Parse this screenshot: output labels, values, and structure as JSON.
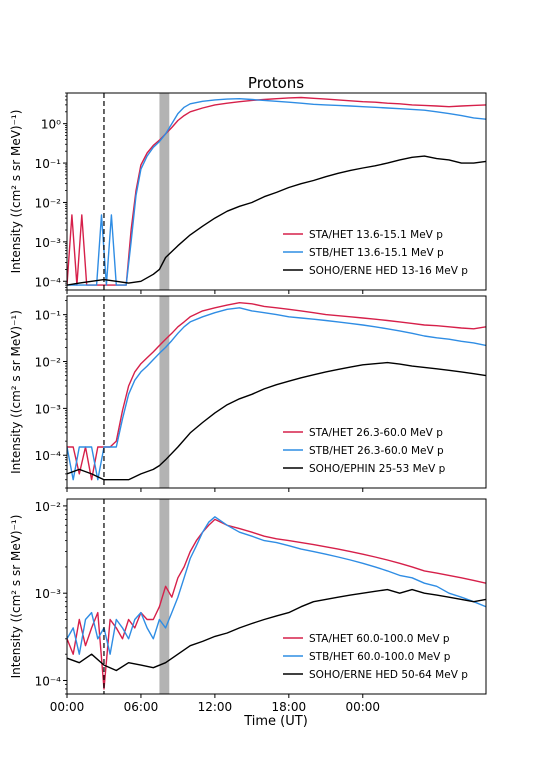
{
  "figure": {
    "title": "Protons",
    "xlabel": "Time (UT)",
    "x_ticks": [
      "00:00",
      "06:00",
      "12:00",
      "18:00",
      "00:00"
    ],
    "ylabel": "Intensity ((cm² s sr MeV)⁻¹)",
    "event_time_hours": 3.0,
    "shaded_interval_hours": [
      7.5,
      8.3
    ],
    "colors": {
      "sta": "#d6204a",
      "stb": "#2f8de4",
      "soho": "#000000",
      "shade": "#b3b3b3"
    }
  },
  "chart_data": [
    {
      "type": "line",
      "title": "Protons",
      "xlabel": "",
      "ylabel": "Intensity ((cm² s sr MeV)⁻¹)",
      "x_unit": "hours since 00:00 UT",
      "xlim": [
        0,
        34
      ],
      "ylog": true,
      "ylim": [
        6e-05,
        6
      ],
      "y_ticks": [
        {
          "label": "10⁻⁴",
          "value": 0.0001
        },
        {
          "label": "10⁻³",
          "value": 0.001
        },
        {
          "label": "10⁻²",
          "value": 0.01
        },
        {
          "label": "10⁻¹",
          "value": 0.1
        },
        {
          "label": "10⁰",
          "value": 1
        }
      ],
      "legend": "lower-right",
      "series": [
        {
          "name": "STA/HET 13.6-15.1 MeV p",
          "color": "#d6204a",
          "x": [
            0,
            0.4,
            0.8,
            1.2,
            1.6,
            2.0,
            2.4,
            2.8,
            3.2,
            3.6,
            4.0,
            4.4,
            4.8,
            5.2,
            5.6,
            6.0,
            6.5,
            7.0,
            7.5,
            8.0,
            8.5,
            9.0,
            9.5,
            10,
            11,
            12,
            13,
            14,
            15,
            16,
            17,
            18,
            19,
            20,
            21,
            22,
            23,
            24,
            25,
            26,
            27,
            28,
            29,
            30,
            31,
            32,
            33,
            34
          ],
          "y": [
            8e-05,
            0.0048,
            8e-05,
            0.0048,
            8e-05,
            8e-05,
            8e-05,
            8e-05,
            8e-05,
            8e-05,
            8e-05,
            8e-05,
            8e-05,
            0.002,
            0.02,
            0.09,
            0.18,
            0.28,
            0.38,
            0.55,
            0.8,
            1.2,
            1.6,
            2.0,
            2.5,
            3.0,
            3.3,
            3.6,
            3.9,
            4.1,
            4.3,
            4.5,
            4.6,
            4.4,
            4.2,
            4.0,
            3.8,
            3.6,
            3.5,
            3.3,
            3.2,
            3.0,
            2.9,
            2.8,
            2.7,
            2.8,
            2.9,
            3.0
          ]
        },
        {
          "name": "STB/HET 13.6-15.1 MeV p",
          "color": "#2f8de4",
          "x": [
            0,
            0.4,
            0.8,
            1.2,
            1.6,
            2.0,
            2.4,
            2.8,
            3.2,
            3.6,
            4.0,
            4.4,
            4.8,
            5.2,
            5.6,
            6.0,
            6.5,
            7.0,
            7.5,
            8.0,
            8.5,
            9.0,
            9.5,
            10,
            11,
            12,
            13,
            14,
            15,
            16,
            17,
            18,
            19,
            20,
            21,
            22,
            23,
            24,
            25,
            26,
            27,
            28,
            29,
            30,
            31,
            32,
            33,
            34
          ],
          "y": [
            8e-05,
            8e-05,
            8e-05,
            8e-05,
            8e-05,
            8e-05,
            8e-05,
            0.0048,
            8e-05,
            0.0048,
            8e-05,
            8e-05,
            8e-05,
            0.001,
            0.015,
            0.07,
            0.15,
            0.25,
            0.35,
            0.55,
            1.0,
            1.8,
            2.6,
            3.2,
            3.7,
            4.0,
            4.2,
            4.3,
            4.1,
            3.9,
            3.7,
            3.5,
            3.3,
            3.1,
            3.0,
            2.9,
            2.8,
            2.7,
            2.6,
            2.5,
            2.4,
            2.3,
            2.2,
            2.0,
            1.8,
            1.6,
            1.4,
            1.3
          ]
        },
        {
          "name": "SOHO/ERNE HED 13-16 MeV p",
          "color": "#000000",
          "x": [
            0,
            1,
            2,
            3,
            4,
            5,
            6,
            7,
            7.5,
            8,
            9,
            10,
            11,
            12,
            13,
            14,
            15,
            16,
            17,
            18,
            19,
            20,
            21,
            22,
            23,
            24,
            25,
            26,
            27,
            28,
            29,
            30,
            31,
            32,
            33,
            34
          ],
          "y": [
            8e-05,
            9e-05,
            0.0001,
            0.00011,
            0.0001,
            9e-05,
            0.0001,
            0.00015,
            0.0002,
            0.0004,
            0.0008,
            0.0015,
            0.0025,
            0.004,
            0.006,
            0.008,
            0.01,
            0.014,
            0.018,
            0.024,
            0.03,
            0.036,
            0.045,
            0.055,
            0.065,
            0.075,
            0.085,
            0.1,
            0.12,
            0.14,
            0.15,
            0.13,
            0.12,
            0.1,
            0.1,
            0.11
          ]
        }
      ]
    },
    {
      "type": "line",
      "title": "",
      "xlabel": "",
      "ylabel": "Intensity ((cm² s sr MeV)⁻¹)",
      "x_unit": "hours since 00:00 UT",
      "xlim": [
        0,
        34
      ],
      "ylog": true,
      "ylim": [
        2e-05,
        0.25
      ],
      "y_ticks": [
        {
          "label": "10⁻⁴",
          "value": 0.0001
        },
        {
          "label": "10⁻³",
          "value": 0.001
        },
        {
          "label": "10⁻²",
          "value": 0.01
        },
        {
          "label": "10⁻¹",
          "value": 0.1
        }
      ],
      "legend": "lower-right",
      "series": [
        {
          "name": "STA/HET 26.3-60.0 MeV p",
          "color": "#d6204a",
          "x": [
            0,
            0.5,
            1,
            1.5,
            2,
            2.5,
            3,
            3.5,
            4,
            4.5,
            5,
            5.5,
            6,
            6.5,
            7,
            7.5,
            8,
            8.5,
            9,
            9.5,
            10,
            11,
            12,
            13,
            14,
            15,
            16,
            17,
            18,
            19,
            20,
            21,
            22,
            23,
            24,
            25,
            26,
            27,
            28,
            29,
            30,
            31,
            32,
            33,
            34
          ],
          "y": [
            0.00015,
            0.00015,
            4e-05,
            0.00015,
            3e-05,
            0.00015,
            0.00015,
            0.00015,
            0.0002,
            0.0009,
            0.003,
            0.006,
            0.009,
            0.012,
            0.016,
            0.022,
            0.03,
            0.04,
            0.055,
            0.07,
            0.09,
            0.12,
            0.14,
            0.16,
            0.18,
            0.17,
            0.15,
            0.14,
            0.13,
            0.12,
            0.11,
            0.1,
            0.095,
            0.09,
            0.085,
            0.08,
            0.075,
            0.07,
            0.065,
            0.06,
            0.058,
            0.055,
            0.052,
            0.05,
            0.055
          ]
        },
        {
          "name": "STB/HET 26.3-60.0 MeV p",
          "color": "#2f8de4",
          "x": [
            0,
            0.5,
            1,
            1.5,
            2,
            2.5,
            3,
            3.5,
            4,
            4.5,
            5,
            5.5,
            6,
            6.5,
            7,
            7.5,
            8,
            8.5,
            9,
            9.5,
            10,
            11,
            12,
            13,
            14,
            15,
            16,
            17,
            18,
            19,
            20,
            21,
            22,
            23,
            24,
            25,
            26,
            27,
            28,
            29,
            30,
            31,
            32,
            33,
            34
          ],
          "y": [
            0.00015,
            3e-05,
            0.00015,
            0.00015,
            0.00015,
            3e-05,
            0.00015,
            0.00015,
            0.00015,
            0.0006,
            0.002,
            0.004,
            0.006,
            0.008,
            0.011,
            0.015,
            0.02,
            0.028,
            0.04,
            0.055,
            0.07,
            0.09,
            0.11,
            0.13,
            0.14,
            0.12,
            0.11,
            0.1,
            0.09,
            0.085,
            0.08,
            0.075,
            0.07,
            0.065,
            0.06,
            0.055,
            0.05,
            0.045,
            0.04,
            0.035,
            0.032,
            0.03,
            0.027,
            0.025,
            0.022
          ]
        },
        {
          "name": "SOHO/EPHIN 25-53 MeV p",
          "color": "#000000",
          "x": [
            0,
            1,
            2,
            3,
            4,
            5,
            6,
            7,
            7.5,
            8,
            9,
            10,
            11,
            12,
            13,
            14,
            15,
            16,
            17,
            18,
            19,
            20,
            21,
            22,
            23,
            24,
            25,
            26,
            27,
            28,
            29,
            30,
            31,
            32,
            33,
            34
          ],
          "y": [
            4e-05,
            5e-05,
            4e-05,
            3e-05,
            3e-05,
            3e-05,
            4e-05,
            5e-05,
            6e-05,
            8e-05,
            0.00015,
            0.0003,
            0.0005,
            0.0008,
            0.0012,
            0.0016,
            0.002,
            0.0026,
            0.0032,
            0.0038,
            0.0045,
            0.0052,
            0.006,
            0.0068,
            0.0076,
            0.0085,
            0.009,
            0.0095,
            0.0088,
            0.008,
            0.0075,
            0.007,
            0.0065,
            0.006,
            0.0055,
            0.005
          ]
        }
      ]
    },
    {
      "type": "line",
      "title": "",
      "xlabel": "Time (UT)",
      "ylabel": "Intensity ((cm² s sr MeV)⁻¹)",
      "x_unit": "hours since 00:00 UT",
      "xlim": [
        0,
        34
      ],
      "ylog": true,
      "ylim": [
        7e-05,
        0.012
      ],
      "y_ticks": [
        {
          "label": "10⁻⁴",
          "value": 0.0001
        },
        {
          "label": "10⁻³",
          "value": 0.001
        },
        {
          "label": "10⁻²",
          "value": 0.01
        }
      ],
      "legend": "lower-right",
      "series": [
        {
          "name": "STA/HET 60.0-100.0 MeV p",
          "color": "#d6204a",
          "x": [
            0,
            0.5,
            1,
            1.5,
            2,
            2.5,
            3,
            3.5,
            4,
            4.5,
            5,
            5.5,
            6,
            6.5,
            7,
            7.5,
            8,
            8.5,
            9,
            9.5,
            10,
            10.5,
            11,
            11.5,
            12,
            13,
            14,
            15,
            16,
            17,
            18,
            19,
            20,
            21,
            22,
            23,
            24,
            25,
            26,
            27,
            28,
            29,
            30,
            31,
            32,
            33,
            34
          ],
          "y": [
            0.0003,
            0.0002,
            0.0005,
            0.00025,
            0.0004,
            0.0006,
            8e-05,
            0.0005,
            0.0004,
            0.0003,
            0.0005,
            0.0004,
            0.0006,
            0.0005,
            0.0005,
            0.0007,
            0.0012,
            0.0009,
            0.0015,
            0.002,
            0.003,
            0.004,
            0.005,
            0.006,
            0.007,
            0.006,
            0.0055,
            0.005,
            0.0045,
            0.0042,
            0.004,
            0.0038,
            0.0036,
            0.0034,
            0.0032,
            0.003,
            0.0028,
            0.0026,
            0.0024,
            0.0022,
            0.002,
            0.0018,
            0.0017,
            0.0016,
            0.0015,
            0.0014,
            0.0013
          ]
        },
        {
          "name": "STB/HET 60.0-100.0 MeV p",
          "color": "#2f8de4",
          "x": [
            0,
            0.5,
            1,
            1.5,
            2,
            2.5,
            3,
            3.5,
            4,
            4.5,
            5,
            5.5,
            6,
            6.5,
            7,
            7.5,
            8,
            8.5,
            9,
            9.5,
            10,
            10.5,
            11,
            11.5,
            12,
            13,
            14,
            15,
            16,
            17,
            18,
            19,
            20,
            21,
            22,
            23,
            24,
            25,
            26,
            27,
            28,
            29,
            30,
            31,
            32,
            33,
            34
          ],
          "y": [
            0.0003,
            0.0004,
            0.0002,
            0.0005,
            0.0006,
            0.0003,
            0.0004,
            0.0002,
            0.0005,
            0.0004,
            0.0003,
            0.0005,
            0.0006,
            0.0004,
            0.0003,
            0.0005,
            0.0004,
            0.0006,
            0.0009,
            0.0015,
            0.0025,
            0.0035,
            0.005,
            0.0065,
            0.0075,
            0.006,
            0.005,
            0.0045,
            0.004,
            0.0038,
            0.0035,
            0.0032,
            0.003,
            0.0028,
            0.0026,
            0.0024,
            0.0022,
            0.002,
            0.0018,
            0.0016,
            0.0015,
            0.0013,
            0.0012,
            0.001,
            0.0009,
            0.0008,
            0.0007
          ]
        },
        {
          "name": "SOHO/ERNE HED 50-64 MeV p",
          "color": "#000000",
          "x": [
            0,
            1,
            2,
            3,
            4,
            5,
            6,
            7,
            8,
            9,
            10,
            11,
            12,
            13,
            14,
            15,
            16,
            17,
            18,
            19,
            20,
            21,
            22,
            23,
            24,
            25,
            26,
            27,
            28,
            29,
            30,
            31,
            32,
            33,
            34
          ],
          "y": [
            0.00018,
            0.00016,
            0.0002,
            0.00015,
            0.00013,
            0.00016,
            0.00015,
            0.00014,
            0.00016,
            0.0002,
            0.00025,
            0.00028,
            0.00032,
            0.00035,
            0.0004,
            0.00045,
            0.0005,
            0.00055,
            0.0006,
            0.0007,
            0.0008,
            0.00085,
            0.0009,
            0.00095,
            0.001,
            0.00105,
            0.0011,
            0.001,
            0.0011,
            0.001,
            0.00095,
            0.0009,
            0.00085,
            0.0008,
            0.00085
          ]
        }
      ]
    }
  ]
}
